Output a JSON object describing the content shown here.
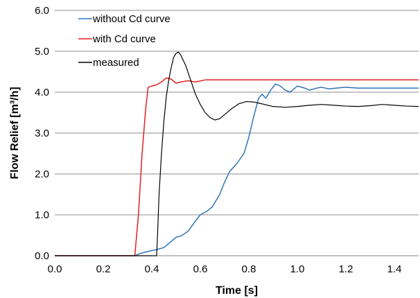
{
  "chart_data": {
    "type": "line",
    "title": "",
    "xlabel": "Time [s]",
    "ylabel": "Flow Relief [m³/h]",
    "xlim": [
      0.0,
      1.5
    ],
    "ylim": [
      0.0,
      6.0
    ],
    "x_ticks": [
      "0.0",
      "0.2",
      "0.4",
      "0.6",
      "0.8",
      "1.0",
      "1.2",
      "1.4"
    ],
    "y_ticks": [
      "0.0",
      "1.0",
      "2.0",
      "3.0",
      "4.0",
      "5.0",
      "6.0"
    ],
    "grid": "horizontal",
    "legend_position": "top-left",
    "series": [
      {
        "name": "without Cd curve",
        "color": "#2e75b6",
        "points": [
          [
            0.0,
            0.0
          ],
          [
            0.33,
            0.0
          ],
          [
            0.35,
            0.05
          ],
          [
            0.38,
            0.1
          ],
          [
            0.42,
            0.15
          ],
          [
            0.45,
            0.2
          ],
          [
            0.48,
            0.35
          ],
          [
            0.5,
            0.45
          ],
          [
            0.52,
            0.48
          ],
          [
            0.55,
            0.6
          ],
          [
            0.58,
            0.85
          ],
          [
            0.6,
            1.0
          ],
          [
            0.63,
            1.1
          ],
          [
            0.65,
            1.2
          ],
          [
            0.68,
            1.5
          ],
          [
            0.7,
            1.8
          ],
          [
            0.72,
            2.05
          ],
          [
            0.75,
            2.25
          ],
          [
            0.78,
            2.5
          ],
          [
            0.8,
            2.9
          ],
          [
            0.82,
            3.4
          ],
          [
            0.84,
            3.85
          ],
          [
            0.855,
            3.95
          ],
          [
            0.87,
            3.85
          ],
          [
            0.89,
            4.05
          ],
          [
            0.91,
            4.2
          ],
          [
            0.93,
            4.15
          ],
          [
            0.95,
            4.05
          ],
          [
            0.97,
            4.0
          ],
          [
            1.0,
            4.15
          ],
          [
            1.03,
            4.1
          ],
          [
            1.05,
            4.05
          ],
          [
            1.08,
            4.1
          ],
          [
            1.1,
            4.12
          ],
          [
            1.13,
            4.08
          ],
          [
            1.16,
            4.1
          ],
          [
            1.2,
            4.12
          ],
          [
            1.25,
            4.1
          ],
          [
            1.3,
            4.1
          ],
          [
            1.4,
            4.1
          ],
          [
            1.5,
            4.1
          ]
        ]
      },
      {
        "name": "with Cd curve",
        "color": "#e02020",
        "points": [
          [
            0.0,
            0.0
          ],
          [
            0.33,
            0.0
          ],
          [
            0.345,
            1.0
          ],
          [
            0.36,
            2.5
          ],
          [
            0.375,
            3.6
          ],
          [
            0.385,
            4.12
          ],
          [
            0.4,
            4.15
          ],
          [
            0.42,
            4.18
          ],
          [
            0.44,
            4.25
          ],
          [
            0.46,
            4.35
          ],
          [
            0.48,
            4.32
          ],
          [
            0.5,
            4.22
          ],
          [
            0.52,
            4.25
          ],
          [
            0.55,
            4.28
          ],
          [
            0.58,
            4.25
          ],
          [
            0.62,
            4.3
          ],
          [
            0.7,
            4.3
          ],
          [
            0.8,
            4.3
          ],
          [
            1.0,
            4.3
          ],
          [
            1.2,
            4.3
          ],
          [
            1.5,
            4.3
          ]
        ]
      },
      {
        "name": "measured",
        "color": "#000000",
        "points": [
          [
            0.0,
            0.0
          ],
          [
            0.42,
            0.0
          ],
          [
            0.425,
            0.7
          ],
          [
            0.43,
            1.5
          ],
          [
            0.44,
            2.5
          ],
          [
            0.45,
            3.3
          ],
          [
            0.46,
            3.9
          ],
          [
            0.47,
            4.3
          ],
          [
            0.48,
            4.6
          ],
          [
            0.49,
            4.85
          ],
          [
            0.5,
            4.95
          ],
          [
            0.51,
            4.98
          ],
          [
            0.52,
            4.9
          ],
          [
            0.54,
            4.65
          ],
          [
            0.56,
            4.3
          ],
          [
            0.58,
            3.95
          ],
          [
            0.6,
            3.7
          ],
          [
            0.62,
            3.5
          ],
          [
            0.64,
            3.38
          ],
          [
            0.66,
            3.32
          ],
          [
            0.68,
            3.35
          ],
          [
            0.7,
            3.45
          ],
          [
            0.73,
            3.6
          ],
          [
            0.76,
            3.72
          ],
          [
            0.79,
            3.77
          ],
          [
            0.82,
            3.76
          ],
          [
            0.85,
            3.72
          ],
          [
            0.9,
            3.65
          ],
          [
            0.95,
            3.63
          ],
          [
            1.0,
            3.65
          ],
          [
            1.05,
            3.68
          ],
          [
            1.1,
            3.7
          ],
          [
            1.15,
            3.68
          ],
          [
            1.2,
            3.66
          ],
          [
            1.25,
            3.65
          ],
          [
            1.3,
            3.67
          ],
          [
            1.35,
            3.7
          ],
          [
            1.4,
            3.68
          ],
          [
            1.45,
            3.66
          ],
          [
            1.5,
            3.65
          ]
        ]
      }
    ]
  }
}
